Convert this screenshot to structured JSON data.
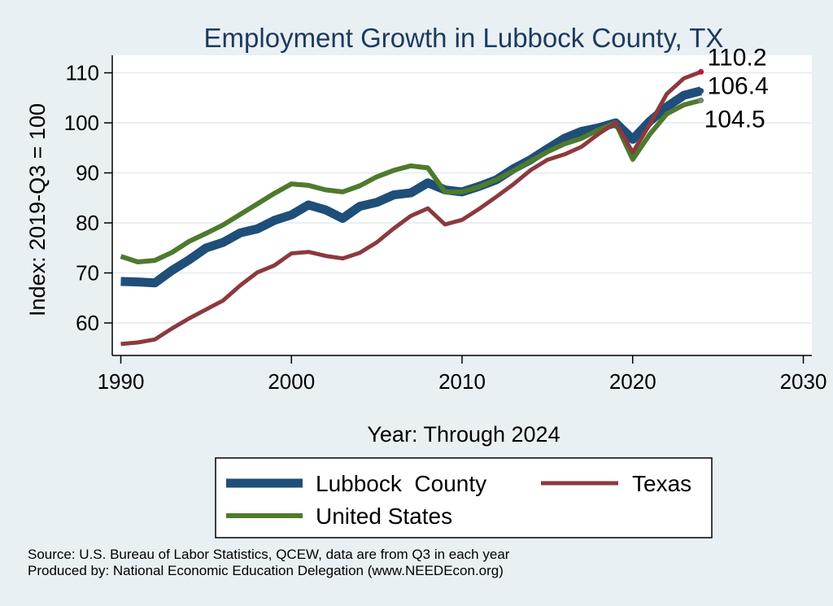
{
  "chart_data": {
    "type": "line",
    "title": "Employment Growth in Lubbock County, TX",
    "xlabel": "Year: Through 2024",
    "ylabel": "Index: 2019-Q3 = 100",
    "xlim": [
      1989.5,
      2030.5
    ],
    "ylim": [
      53.5,
      113.5
    ],
    "xticks": [
      1990,
      2000,
      2010,
      2020,
      2030
    ],
    "yticks": [
      60,
      70,
      80,
      90,
      100,
      110
    ],
    "grid": true,
    "legend_position": "bottom",
    "x": [
      1990,
      1991,
      1992,
      1993,
      1994,
      1995,
      1996,
      1997,
      1998,
      1999,
      2000,
      2001,
      2002,
      2003,
      2004,
      2005,
      2006,
      2007,
      2008,
      2009,
      2010,
      2011,
      2012,
      2013,
      2014,
      2015,
      2016,
      2017,
      2018,
      2019,
      2020,
      2021,
      2022,
      2023,
      2024
    ],
    "series": [
      {
        "name": "Lubbock  County",
        "color": "#1f4e79",
        "values": [
          68.3,
          68.2,
          68.0,
          70.5,
          72.6,
          75.0,
          76.1,
          78.0,
          78.8,
          80.5,
          81.6,
          83.6,
          82.6,
          80.9,
          83.3,
          84.1,
          85.6,
          86.0,
          88.0,
          86.6,
          86.2,
          87.3,
          88.6,
          90.8,
          92.6,
          94.8,
          96.9,
          98.3,
          99.0,
          100.0,
          96.7,
          100.3,
          103.2,
          105.5,
          106.4
        ],
        "end_label": "106.4"
      },
      {
        "name": "Texas",
        "color": "#8b3a3e",
        "values": [
          55.8,
          56.1,
          56.7,
          58.9,
          60.9,
          62.7,
          64.5,
          67.5,
          70.1,
          71.5,
          73.9,
          74.2,
          73.4,
          72.9,
          74.0,
          76.1,
          78.9,
          81.4,
          82.9,
          79.7,
          80.6,
          82.8,
          85.2,
          87.7,
          90.5,
          92.6,
          93.7,
          95.2,
          97.8,
          100.0,
          94.1,
          99.7,
          105.8,
          108.9,
          110.2
        ],
        "end_label": "110.2"
      },
      {
        "name": "United States",
        "color": "#4e7a2e",
        "values": [
          73.3,
          72.2,
          72.5,
          74.1,
          76.3,
          77.9,
          79.6,
          81.7,
          83.8,
          85.9,
          87.8,
          87.5,
          86.6,
          86.2,
          87.4,
          89.2,
          90.5,
          91.4,
          91.0,
          86.2,
          86.2,
          87.2,
          88.6,
          90.4,
          92.3,
          94.2,
          95.8,
          96.9,
          98.6,
          100.0,
          92.7,
          97.7,
          101.8,
          103.6,
          104.5
        ],
        "end_label": "104.5"
      }
    ]
  },
  "footer": {
    "source": "Source: U.S. Bureau of Labor Statistics, QCEW, data are from Q3 in each year",
    "producer": "Produced by: National Economic Education Delegation (www.NEEDEcon.org)"
  }
}
